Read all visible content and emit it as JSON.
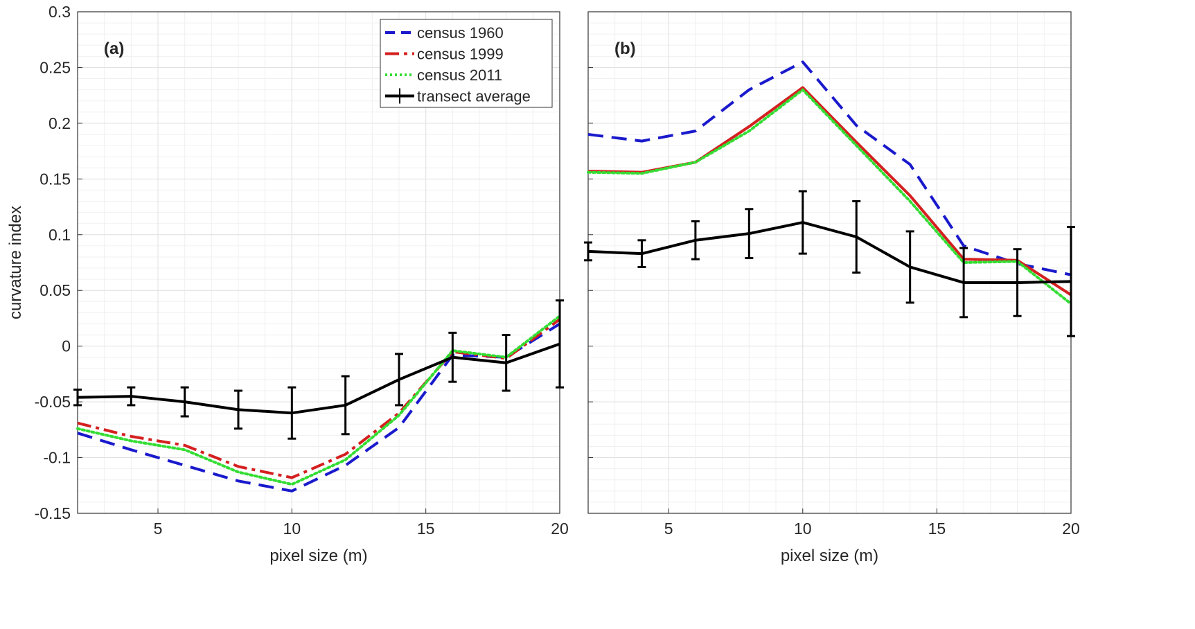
{
  "chart_data": [
    {
      "type": "line",
      "panel_label": "(a)",
      "xlabel": "pixel size (m)",
      "ylabel": "curvature index",
      "xlim": [
        2,
        20
      ],
      "ylim": [
        -0.15,
        0.3
      ],
      "xticks": [
        5,
        10,
        15,
        20
      ],
      "yticks": [
        -0.15,
        -0.1,
        -0.05,
        0,
        0.05,
        0.1,
        0.15,
        0.2,
        0.25,
        0.3
      ],
      "ytick_labels": [
        "-0.15",
        "-0.1",
        "-0.05",
        "0",
        "0.05",
        "0.1",
        "0.15",
        "0.2",
        "0.25",
        "0.3"
      ],
      "grid": true,
      "legend_position": "top-right",
      "x": [
        2,
        4,
        6,
        8,
        10,
        12,
        14,
        16,
        18,
        20
      ],
      "series": [
        {
          "name": "census 1960",
          "style": "dashed",
          "color": "#1a1acc",
          "values": [
            -0.078,
            -0.093,
            -0.107,
            -0.121,
            -0.13,
            -0.107,
            -0.073,
            -0.008,
            -0.01,
            0.02
          ]
        },
        {
          "name": "census 1999",
          "style": "dashdot",
          "color": "#d42020",
          "values": [
            -0.069,
            -0.081,
            -0.089,
            -0.108,
            -0.118,
            -0.097,
            -0.06,
            -0.005,
            -0.011,
            0.024
          ]
        },
        {
          "name": "census 2011",
          "style": "dotted",
          "color": "#33dd33",
          "values": [
            -0.074,
            -0.085,
            -0.093,
            -0.113,
            -0.124,
            -0.102,
            -0.062,
            -0.004,
            -0.01,
            0.027
          ]
        },
        {
          "name": "transect average",
          "style": "errorbar",
          "color": "#000000",
          "values": [
            -0.046,
            -0.045,
            -0.05,
            -0.057,
            -0.06,
            -0.053,
            -0.03,
            -0.01,
            -0.015,
            0.002
          ],
          "errors": [
            0.007,
            0.008,
            0.013,
            0.017,
            0.023,
            0.026,
            0.023,
            0.022,
            0.025,
            0.039
          ]
        }
      ]
    },
    {
      "type": "line",
      "panel_label": "(b)",
      "xlabel": "pixel size (m)",
      "ylabel": "",
      "xlim": [
        2,
        20
      ],
      "ylim": [
        -0.15,
        0.3
      ],
      "xticks": [
        5,
        10,
        15,
        20
      ],
      "grid": true,
      "x": [
        2,
        4,
        6,
        8,
        10,
        12,
        14,
        16,
        18,
        20
      ],
      "series": [
        {
          "name": "census 1960",
          "style": "dashed",
          "color": "#1a1acc",
          "values": [
            0.19,
            0.184,
            0.193,
            0.23,
            0.255,
            0.198,
            0.163,
            0.09,
            0.074,
            0.064
          ]
        },
        {
          "name": "census 1999",
          "style": "solid",
          "color": "#d42020",
          "values": [
            0.157,
            0.156,
            0.165,
            0.197,
            0.232,
            0.183,
            0.135,
            0.078,
            0.077,
            0.046
          ]
        },
        {
          "name": "census 2011",
          "style": "dotted",
          "color": "#33dd33",
          "values": [
            0.156,
            0.155,
            0.165,
            0.193,
            0.23,
            0.18,
            0.13,
            0.075,
            0.076,
            0.038
          ]
        },
        {
          "name": "transect average",
          "style": "errorbar",
          "color": "#000000",
          "values": [
            0.085,
            0.083,
            0.095,
            0.101,
            0.111,
            0.098,
            0.071,
            0.057,
            0.057,
            0.058
          ],
          "errors": [
            0.008,
            0.012,
            0.017,
            0.022,
            0.028,
            0.032,
            0.032,
            0.031,
            0.03,
            0.049
          ]
        }
      ]
    }
  ]
}
